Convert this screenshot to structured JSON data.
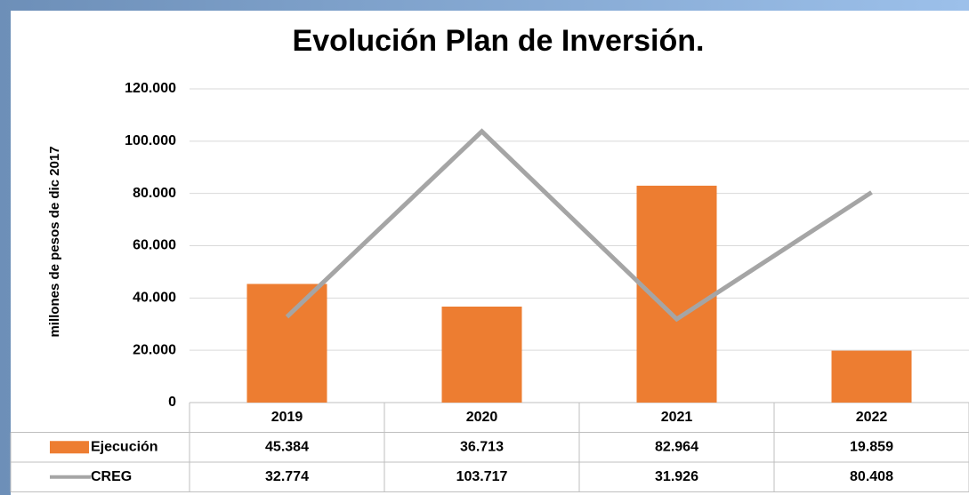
{
  "chart_data": {
    "type": "bar-line",
    "title": "Evolución Plan de Inversión.",
    "y_label": "millones de pesos de dic  2017",
    "categories": [
      "2019",
      "2020",
      "2021",
      "2022"
    ],
    "series": [
      {
        "name": "Ejecución",
        "type": "bar",
        "color": "#ed7d31",
        "values": [
          45384,
          36713,
          82964,
          19859
        ],
        "value_labels": [
          "45.384",
          "36.713",
          "82.964",
          "19.859"
        ]
      },
      {
        "name": "CREG",
        "type": "line",
        "color": "#a5a5a5",
        "values": [
          32774,
          103717,
          31926,
          80408
        ],
        "value_labels": [
          "32.774",
          "103.717",
          "31.926",
          "80.408"
        ]
      }
    ],
    "ylim": [
      0,
      120000
    ],
    "yticks": [
      0,
      {
        "value": 20000,
        "label": "20.000"
      },
      {
        "value": 40000,
        "label": "40.000"
      },
      {
        "value": 60000,
        "label": "60.000"
      },
      {
        "value": 80000,
        "label": "80.000"
      },
      {
        "value": 100000,
        "label": "100.000"
      },
      {
        "value": 120000,
        "label": "120.000"
      }
    ],
    "grid": true
  }
}
